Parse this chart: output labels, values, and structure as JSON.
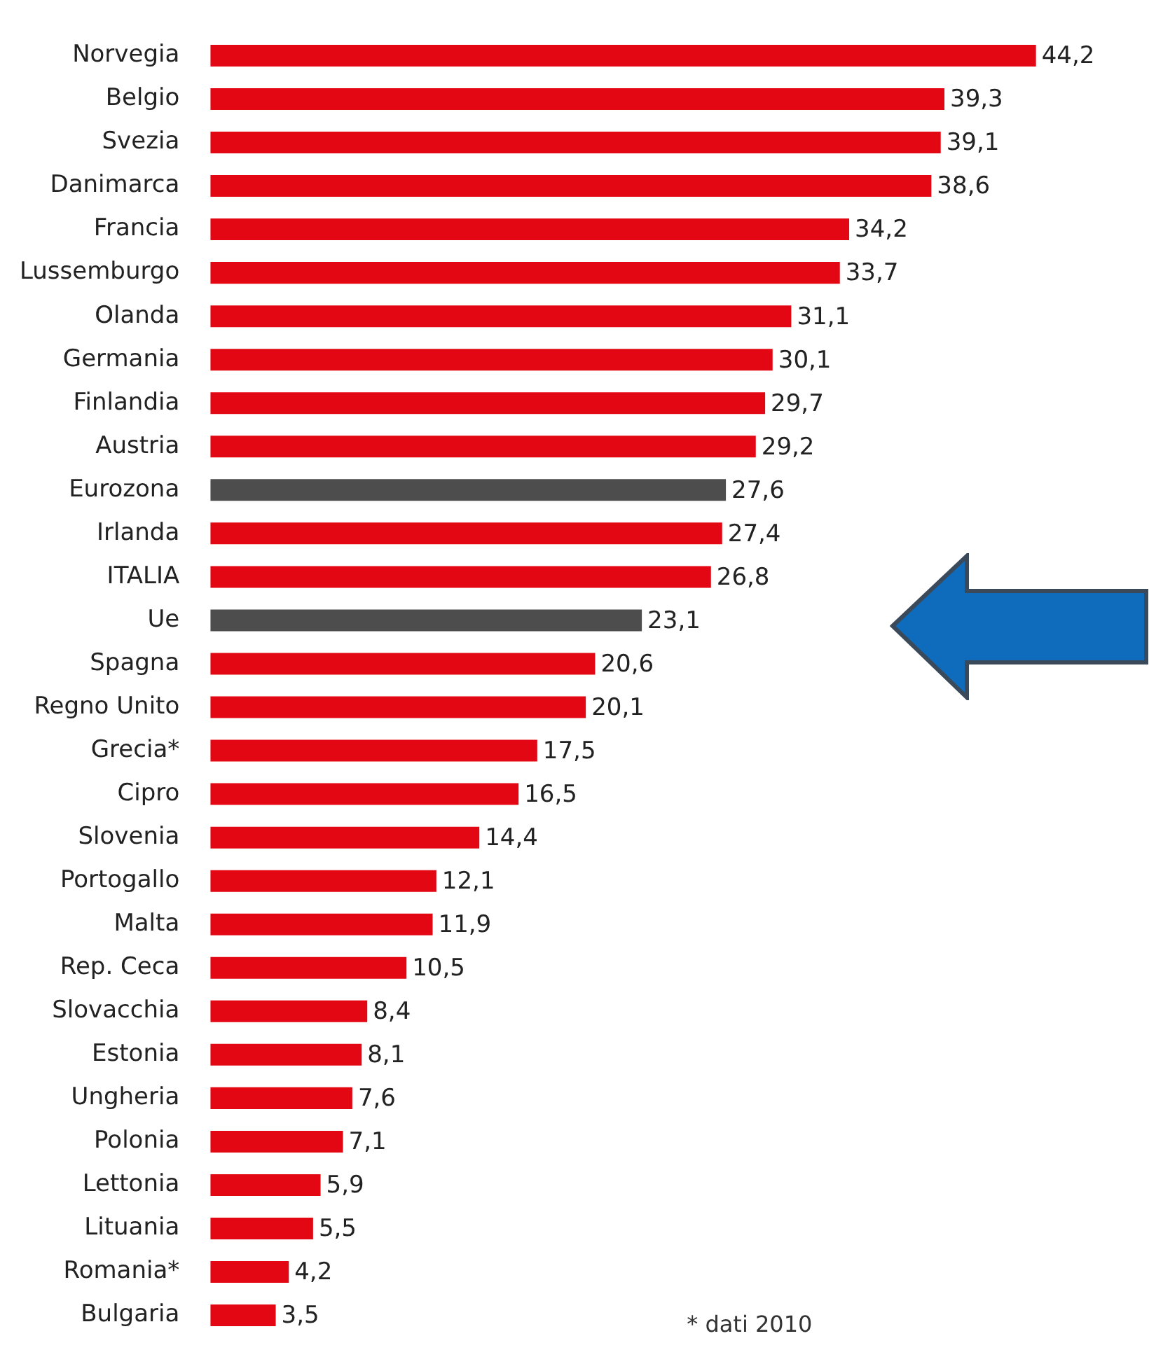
{
  "chart_data": {
    "type": "bar",
    "orientation": "horizontal",
    "categories": [
      "Norvegia",
      "Belgio",
      "Svezia",
      "Danimarca",
      "Francia",
      "Lussemburgo",
      "Olanda",
      "Germania",
      "Finlandia",
      "Austria",
      "Eurozona",
      "Irlanda",
      "ITALIA",
      "Ue",
      "Spagna",
      "Regno Unito",
      "Grecia*",
      "Cipro",
      "Slovenia",
      "Portogallo",
      "Malta",
      "Rep. Ceca",
      "Slovacchia",
      "Estonia",
      "Ungheria",
      "Polonia",
      "Lettonia",
      "Lituania",
      "Romania*",
      "Bulgaria"
    ],
    "values": [
      44.2,
      39.3,
      39.1,
      38.6,
      34.2,
      33.7,
      31.1,
      30.1,
      29.7,
      29.2,
      27.6,
      27.4,
      26.8,
      23.1,
      20.6,
      20.1,
      17.5,
      16.5,
      14.4,
      12.1,
      11.9,
      10.5,
      8.4,
      8.1,
      7.6,
      7.1,
      5.9,
      5.5,
      4.2,
      3.5
    ],
    "value_labels": [
      "44,2",
      "39,3",
      "39,1",
      "38,6",
      "34,2",
      "33,7",
      "31,1",
      "30,1",
      "29,7",
      "29,2",
      "27,6",
      "27,4",
      "26,8",
      "23,1",
      "20,6",
      "20,1",
      "17,5",
      "16,5",
      "14,4",
      "12,1",
      "11,9",
      "10,5",
      "8,4",
      "8,1",
      "7,6",
      "7,1",
      "5,9",
      "5,5",
      "4,2",
      "3,5"
    ],
    "colors": [
      "#e30613",
      "#e30613",
      "#e30613",
      "#e30613",
      "#e30613",
      "#e30613",
      "#e30613",
      "#e30613",
      "#e30613",
      "#e30613",
      "#4d4d4d",
      "#e30613",
      "#e30613",
      "#4d4d4d",
      "#e30613",
      "#e30613",
      "#e30613",
      "#e30613",
      "#e30613",
      "#e30613",
      "#e30613",
      "#e30613",
      "#e30613",
      "#e30613",
      "#e30613",
      "#e30613",
      "#e30613",
      "#e30613",
      "#e30613",
      "#e30613"
    ],
    "tick_labels": "y",
    "legend": false,
    "annotations": [
      "* dati 2010"
    ]
  }
}
